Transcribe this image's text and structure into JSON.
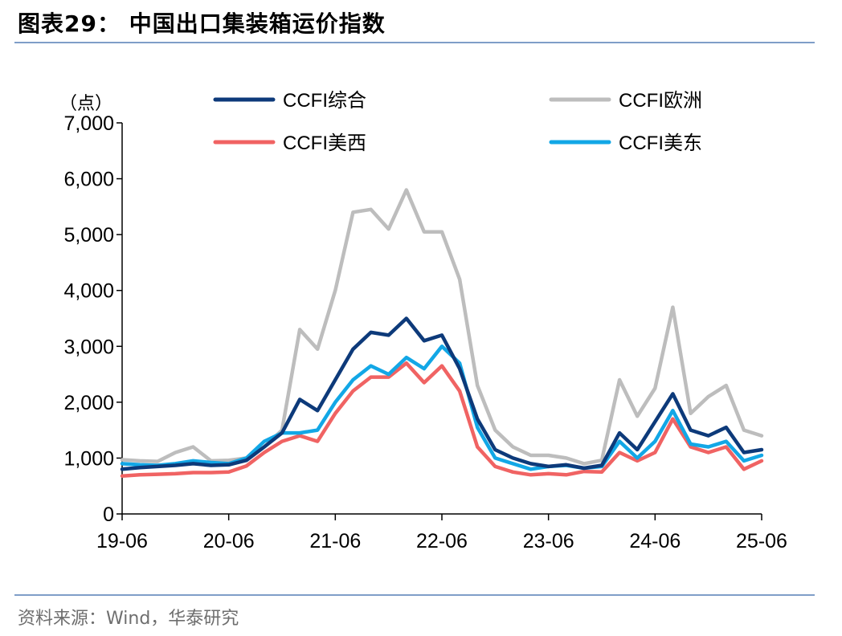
{
  "header": {
    "title": "图表29：  中国出口集装箱运价指数"
  },
  "footer": {
    "source": "资料来源：Wind，华泰研究"
  },
  "chart_data": {
    "type": "line",
    "title": "图表29：  中国出口集装箱运价指数",
    "ylabel": "（点）",
    "xlabel": "",
    "ylim": [
      0,
      7000
    ],
    "yticks": [
      "0",
      "1,000",
      "2,000",
      "3,000",
      "4,000",
      "5,000",
      "6,000",
      "7,000"
    ],
    "xticks": [
      "19-06",
      "20-06",
      "21-06",
      "22-06",
      "23-06",
      "24-06",
      "25-06"
    ],
    "x": [
      "19-06",
      "19-08",
      "19-10",
      "19-12",
      "20-02",
      "20-04",
      "20-06",
      "20-08",
      "20-10",
      "20-12",
      "21-02",
      "21-04",
      "21-06",
      "21-08",
      "21-10",
      "21-12",
      "22-02",
      "22-04",
      "22-06",
      "22-08",
      "22-10",
      "22-12",
      "23-02",
      "23-04",
      "23-06",
      "23-08",
      "23-10",
      "23-12",
      "24-02",
      "24-04",
      "24-06",
      "24-08",
      "24-10",
      "24-12",
      "25-02",
      "25-04",
      "25-06"
    ],
    "legend_position": "top",
    "grid": false,
    "series": [
      {
        "name": "CCFI综合",
        "color": "#0d3a7a",
        "values": [
          800,
          830,
          850,
          870,
          900,
          870,
          880,
          960,
          1200,
          1450,
          2050,
          1850,
          2400,
          2950,
          3250,
          3200,
          3500,
          3100,
          3200,
          2600,
          1700,
          1150,
          1000,
          900,
          850,
          880,
          820,
          870,
          1450,
          1150,
          1650,
          2150,
          1500,
          1400,
          1550,
          1100,
          1150
        ]
      },
      {
        "name": "CCFI欧洲",
        "color": "#bdbdbd",
        "values": [
          970,
          950,
          940,
          1100,
          1200,
          950,
          960,
          1000,
          1200,
          1500,
          3300,
          2950,
          4000,
          5400,
          5450,
          5100,
          5800,
          5050,
          5050,
          4200,
          2300,
          1500,
          1200,
          1050,
          1050,
          1000,
          900,
          960,
          2400,
          1750,
          2250,
          3700,
          1800,
          2100,
          2300,
          1500,
          1400
        ]
      },
      {
        "name": "CCFI美西",
        "color": "#f06363",
        "values": [
          680,
          700,
          710,
          720,
          740,
          740,
          750,
          860,
          1100,
          1300,
          1400,
          1300,
          1800,
          2200,
          2450,
          2450,
          2700,
          2350,
          2650,
          2200,
          1200,
          850,
          750,
          700,
          720,
          700,
          760,
          750,
          1100,
          950,
          1100,
          1700,
          1200,
          1100,
          1200,
          800,
          950
        ]
      },
      {
        "name": "CCFI美东",
        "color": "#12a7e6",
        "values": [
          900,
          880,
          870,
          900,
          950,
          920,
          900,
          1000,
          1300,
          1450,
          1450,
          1500,
          2000,
          2400,
          2650,
          2500,
          2800,
          2600,
          3000,
          2700,
          1550,
          1000,
          900,
          800,
          850,
          870,
          820,
          850,
          1300,
          1000,
          1300,
          1850,
          1250,
          1200,
          1300,
          950,
          1050
        ]
      }
    ]
  }
}
